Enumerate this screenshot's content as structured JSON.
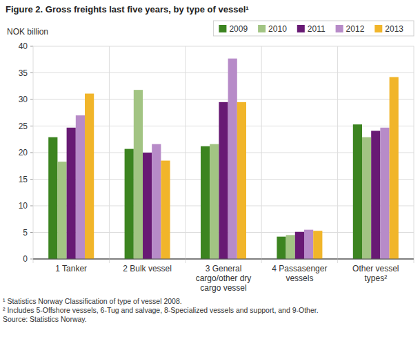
{
  "chart_data": {
    "type": "bar",
    "title": "Figure 2. Gross freights last five years, by type of vessel¹",
    "y_label": "NOK billion",
    "categories": [
      "1 Tanker",
      "2 Bulk vessel",
      "3 General cargo/other dry cargo vessel",
      "4 Passasenger vessels",
      "Other vessel types²"
    ],
    "series": [
      {
        "name": "2009",
        "color": "#3c8420",
        "values": [
          22.9,
          20.7,
          21.2,
          4.2,
          25.3
        ]
      },
      {
        "name": "2010",
        "color": "#a2c483",
        "values": [
          18.3,
          31.8,
          21.6,
          4.5,
          22.9
        ]
      },
      {
        "name": "2011",
        "color": "#681a74",
        "values": [
          24.7,
          20.0,
          29.5,
          5.1,
          24.1
        ]
      },
      {
        "name": "2012",
        "color": "#b78bc8",
        "values": [
          27.0,
          21.6,
          37.7,
          5.5,
          24.7
        ]
      },
      {
        "name": "2013",
        "color": "#f1b52a",
        "values": [
          31.1,
          18.5,
          29.5,
          5.3,
          34.2
        ]
      }
    ],
    "ylim": [
      0,
      40
    ],
    "yticks": [
      0,
      5,
      10,
      15,
      20,
      25,
      30,
      35,
      40
    ],
    "grid": true,
    "legend": "top-right",
    "notes": [
      "¹ Statistics Norway Classification of type of vessel 2008.",
      "² Includes 5-Offshore vessels, 6-Tug and salvage, 8-Specialized vessels and support, and 9-Other."
    ],
    "source": "Source: Statistics Norway."
  }
}
